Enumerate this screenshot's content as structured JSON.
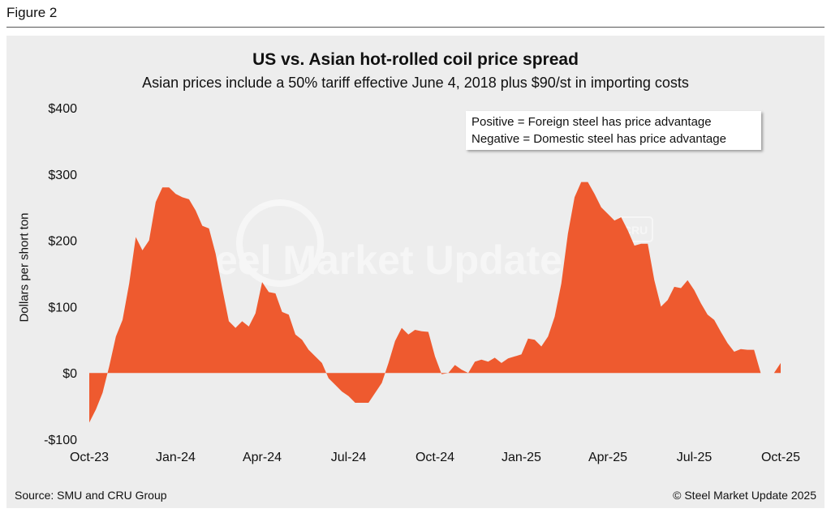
{
  "figure_label": "Figure 2",
  "chart_data": {
    "type": "area",
    "title": "US vs. Asian hot-rolled coil price spread",
    "subtitle": "Asian prices include a 50% tariff effective June 4, 2018 plus $90/st in importing costs",
    "ylabel": "Dollars per short ton",
    "xlabel": "",
    "ylim": [
      -100,
      400
    ],
    "y_ticks": [
      400,
      300,
      200,
      100,
      0,
      -100
    ],
    "y_tick_labels": [
      "$400",
      "$300",
      "$200",
      "$100",
      "$0",
      "-$100"
    ],
    "x_ticks": [
      0,
      13,
      26,
      39,
      52,
      65,
      78,
      91,
      104
    ],
    "x_tick_labels": [
      "Oct-23",
      "Jan-24",
      "Apr-24",
      "Jul-24",
      "Oct-24",
      "Jan-25",
      "Apr-25",
      "Jul-25",
      "Oct-25"
    ],
    "x_unit": "weeks since Oct-23",
    "series": [
      {
        "name": "Price spread",
        "color": "#ee5a2f",
        "points": [
          [
            0,
            -75
          ],
          [
            1,
            -55
          ],
          [
            2,
            -30
          ],
          [
            3,
            10
          ],
          [
            4,
            55
          ],
          [
            5,
            80
          ],
          [
            6,
            135
          ],
          [
            7,
            205
          ],
          [
            8,
            185
          ],
          [
            9,
            200
          ],
          [
            10,
            258
          ],
          [
            11,
            280
          ],
          [
            12,
            280
          ],
          [
            13,
            270
          ],
          [
            14,
            265
          ],
          [
            15,
            262
          ],
          [
            16,
            245
          ],
          [
            17,
            222
          ],
          [
            18,
            218
          ],
          [
            19,
            180
          ],
          [
            20,
            128
          ],
          [
            21,
            78
          ],
          [
            22,
            68
          ],
          [
            23,
            78
          ],
          [
            24,
            70
          ],
          [
            25,
            90
          ],
          [
            26,
            137
          ],
          [
            27,
            122
          ],
          [
            28,
            120
          ],
          [
            29,
            92
          ],
          [
            30,
            88
          ],
          [
            31,
            58
          ],
          [
            32,
            50
          ],
          [
            33,
            35
          ],
          [
            34,
            25
          ],
          [
            35,
            15
          ],
          [
            36,
            -8
          ],
          [
            37,
            -18
          ],
          [
            38,
            -28
          ],
          [
            39,
            -35
          ],
          [
            40,
            -45
          ],
          [
            41,
            -45
          ],
          [
            42,
            -45
          ],
          [
            43,
            -30
          ],
          [
            44,
            -15
          ],
          [
            45,
            15
          ],
          [
            46,
            48
          ],
          [
            47,
            68
          ],
          [
            48,
            58
          ],
          [
            49,
            65
          ],
          [
            50,
            63
          ],
          [
            51,
            62
          ],
          [
            52,
            25
          ],
          [
            53,
            -2
          ],
          [
            54,
            0
          ],
          [
            55,
            12
          ],
          [
            56,
            5
          ],
          [
            57,
            0
          ],
          [
            58,
            17
          ],
          [
            59,
            20
          ],
          [
            60,
            17
          ],
          [
            61,
            23
          ],
          [
            62,
            15
          ],
          [
            63,
            22
          ],
          [
            64,
            25
          ],
          [
            65,
            28
          ],
          [
            66,
            52
          ],
          [
            67,
            50
          ],
          [
            68,
            40
          ],
          [
            69,
            55
          ],
          [
            70,
            85
          ],
          [
            71,
            135
          ],
          [
            72,
            210
          ],
          [
            73,
            265
          ],
          [
            74,
            288
          ],
          [
            75,
            288
          ],
          [
            76,
            270
          ],
          [
            77,
            250
          ],
          [
            78,
            240
          ],
          [
            79,
            230
          ],
          [
            80,
            235
          ],
          [
            81,
            215
          ],
          [
            82,
            192
          ],
          [
            83,
            195
          ],
          [
            84,
            195
          ],
          [
            85,
            140
          ],
          [
            86,
            100
          ],
          [
            87,
            110
          ],
          [
            88,
            130
          ],
          [
            89,
            128
          ],
          [
            90,
            140
          ],
          [
            91,
            125
          ],
          [
            92,
            105
          ],
          [
            93,
            88
          ],
          [
            94,
            80
          ],
          [
            95,
            62
          ],
          [
            96,
            45
          ],
          [
            97,
            32
          ],
          [
            98,
            36
          ],
          [
            99,
            35
          ],
          [
            100,
            35
          ],
          [
            101,
            0
          ],
          [
            102,
            0
          ],
          [
            103,
            0
          ],
          [
            104,
            15
          ]
        ]
      }
    ],
    "legend_lines": [
      "Positive = Foreign steel has price advantage",
      "Negative = Domestic steel has price advantage"
    ],
    "grid": false
  },
  "watermark": {
    "text": "Steel Market Update",
    "badge": "CRU"
  },
  "source_note": "Source: SMU and CRU Group",
  "copyright": "© Steel Market Update 2025"
}
